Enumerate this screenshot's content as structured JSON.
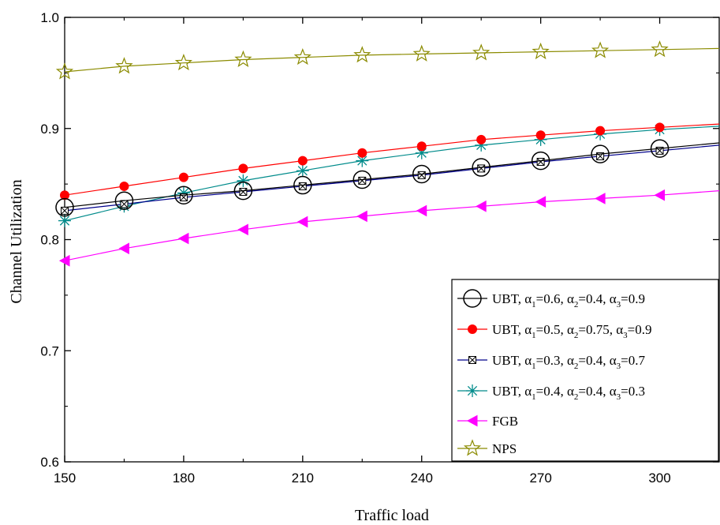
{
  "chart_data": {
    "type": "line",
    "xlabel": "Traffic load",
    "ylabel": "Channel Utilization",
    "xlim": [
      150,
      315
    ],
    "ylim": [
      0.6,
      1.0
    ],
    "x_ticks": [
      150,
      180,
      210,
      240,
      270,
      300
    ],
    "x_tick_labels": [
      "150",
      "180",
      "210",
      "240",
      "270",
      "300"
    ],
    "y_ticks": [
      0.6,
      0.7,
      0.8,
      0.9,
      1.0
    ],
    "y_tick_labels": [
      "0.6",
      "0.7",
      "0.8",
      "0.9",
      "1.0"
    ],
    "grid": false,
    "legend_position": "bottom-right",
    "x": [
      150,
      165,
      180,
      195,
      210,
      225,
      240,
      255,
      270,
      285,
      300
    ],
    "series": [
      {
        "name": "UBT, α1=0.6, α2=0.4, α3=0.9",
        "legend": {
          "prefix": "UBT, α",
          "a1": "=0.6, α",
          "a2": "=0.4, α",
          "a3": "=0.9"
        },
        "color": "#000000",
        "marker": "circle-open",
        "values": [
          0.829,
          0.835,
          0.84,
          0.844,
          0.849,
          0.854,
          0.859,
          0.865,
          0.871,
          0.877,
          0.882
        ],
        "end_value": 0.887
      },
      {
        "name": "UBT, α1=0.5, α2=0.75, α3=0.9",
        "legend": {
          "prefix": "UBT, α",
          "a1": "=0.5, α",
          "a2": "=0.75, α",
          "a3": "=0.9"
        },
        "color": "#ff0000",
        "marker": "circle-filled",
        "values": [
          0.84,
          0.848,
          0.856,
          0.864,
          0.871,
          0.878,
          0.884,
          0.89,
          0.894,
          0.898,
          0.901
        ],
        "end_value": 0.904
      },
      {
        "name": "UBT, α1=0.3, α2=0.4, α3=0.7",
        "legend": {
          "prefix": "UBT, α",
          "a1": "=0.3, α",
          "a2": "=0.4, α",
          "a3": "=0.7"
        },
        "color": "#00008b",
        "marker": "square-x",
        "values": [
          0.826,
          0.832,
          0.838,
          0.843,
          0.848,
          0.853,
          0.858,
          0.864,
          0.87,
          0.875,
          0.88
        ],
        "end_value": 0.885
      },
      {
        "name": "UBT, α1=0.4, α2=0.4, α3=0.3",
        "legend": {
          "prefix": "UBT, α",
          "a1": "=0.4, α",
          "a2": "=0.4, α",
          "a3": "=0.3"
        },
        "color": "#008b8b",
        "marker": "asterisk",
        "values": [
          0.817,
          0.83,
          0.842,
          0.853,
          0.862,
          0.871,
          0.878,
          0.885,
          0.89,
          0.895,
          0.899
        ],
        "end_value": 0.902
      },
      {
        "name": "FGB",
        "legend": {
          "plain": "FGB"
        },
        "color": "#ff00ff",
        "marker": "triangle-left",
        "values": [
          0.781,
          0.792,
          0.801,
          0.809,
          0.816,
          0.821,
          0.826,
          0.83,
          0.834,
          0.837,
          0.84
        ],
        "end_value": 0.844
      },
      {
        "name": "NPS",
        "legend": {
          "plain": "NPS"
        },
        "color": "#8b8b00",
        "marker": "star-open",
        "values": [
          0.951,
          0.956,
          0.959,
          0.962,
          0.964,
          0.966,
          0.967,
          0.968,
          0.969,
          0.97,
          0.971
        ],
        "end_value": 0.972
      }
    ]
  }
}
